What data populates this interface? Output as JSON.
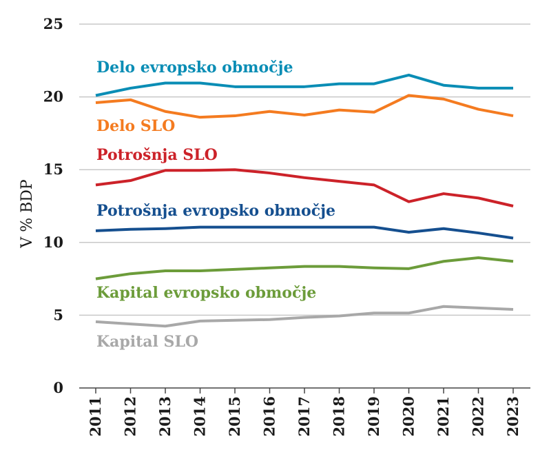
{
  "chart_data": {
    "type": "line",
    "title": "",
    "xlabel": "",
    "ylabel": "V % BDP",
    "ylim": [
      0,
      25
    ],
    "yticks": [
      0,
      5,
      10,
      15,
      20,
      25
    ],
    "grid": true,
    "categories": [
      "2011",
      "2012",
      "2013",
      "2014",
      "2015",
      "2016",
      "2017",
      "2018",
      "2019",
      "2020",
      "2021",
      "2022",
      "2023"
    ],
    "series": [
      {
        "name": "Delo evropsko območje",
        "color": "#0a8db5",
        "values": [
          20.1,
          20.6,
          20.95,
          20.95,
          20.7,
          20.7,
          20.7,
          20.9,
          20.9,
          21.5,
          20.8,
          20.6,
          20.6
        ]
      },
      {
        "name": "Delo SLO",
        "color": "#f47b20",
        "values": [
          19.6,
          19.8,
          19.0,
          18.6,
          18.7,
          19.0,
          18.75,
          19.1,
          18.95,
          20.1,
          19.85,
          19.15,
          18.7
        ]
      },
      {
        "name": "Potrošnja SLO",
        "color": "#cc2229",
        "values": [
          13.95,
          14.25,
          14.95,
          14.95,
          15.0,
          14.77,
          14.45,
          14.2,
          13.95,
          12.8,
          13.35,
          13.05,
          12.5
        ]
      },
      {
        "name": "Potrošnja evropsko območje",
        "color": "#154f8f",
        "values": [
          10.8,
          10.9,
          10.95,
          11.05,
          11.05,
          11.05,
          11.05,
          11.05,
          11.05,
          10.7,
          10.95,
          10.65,
          10.3
        ]
      },
      {
        "name": "Kapital evropsko območje",
        "color": "#6c9c3a",
        "values": [
          7.5,
          7.85,
          8.05,
          8.05,
          8.15,
          8.25,
          8.35,
          8.35,
          8.25,
          8.2,
          8.7,
          8.95,
          8.7
        ]
      },
      {
        "name": "Kapital SLO",
        "color": "#a8a8a8",
        "values": [
          4.55,
          4.4,
          4.25,
          4.6,
          4.65,
          4.7,
          4.85,
          4.95,
          5.15,
          5.15,
          5.6,
          5.5,
          5.4
        ]
      }
    ]
  }
}
